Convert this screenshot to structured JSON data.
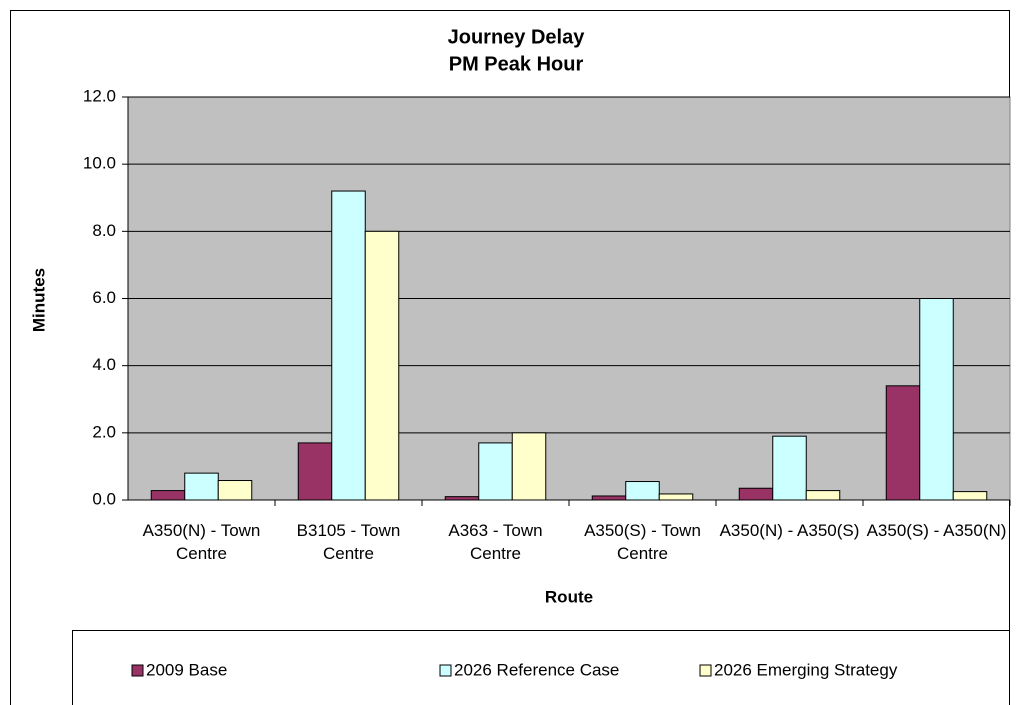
{
  "chart_data": {
    "type": "bar",
    "title": [
      "Journey Delay",
      "PM Peak Hour"
    ],
    "x_label": "Route",
    "y_label": "Minutes",
    "categories": [
      "A350(N) - Town Centre",
      "B3105 - Town Centre",
      "A363 - Town Centre",
      "A350(S) - Town Centre",
      "A350(N) - A350(S)",
      "A350(S) - A350(N)"
    ],
    "series": [
      {
        "name": "2009 Base",
        "color": "#993366",
        "values": [
          0.28,
          1.7,
          0.1,
          0.12,
          0.35,
          3.4
        ]
      },
      {
        "name": "2026 Reference Case",
        "color": "#ccffff",
        "values": [
          0.8,
          9.2,
          1.7,
          0.55,
          1.9,
          6.0
        ]
      },
      {
        "name": "2026 Emerging Strategy",
        "color": "#ffffcc",
        "values": [
          0.58,
          8.0,
          2.0,
          0.18,
          0.28,
          0.25
        ]
      }
    ],
    "ylim": [
      0,
      12
    ],
    "yticks": [
      {
        "value": 0,
        "label": "0.0"
      },
      {
        "value": 2,
        "label": "2.0"
      },
      {
        "value": 4,
        "label": "4.0"
      },
      {
        "value": 6,
        "label": "6.0"
      },
      {
        "value": 8,
        "label": "8.0"
      },
      {
        "value": 10,
        "label": "10.0"
      },
      {
        "value": 12,
        "label": "12.0"
      }
    ],
    "grid": true,
    "legend": "bottom"
  }
}
